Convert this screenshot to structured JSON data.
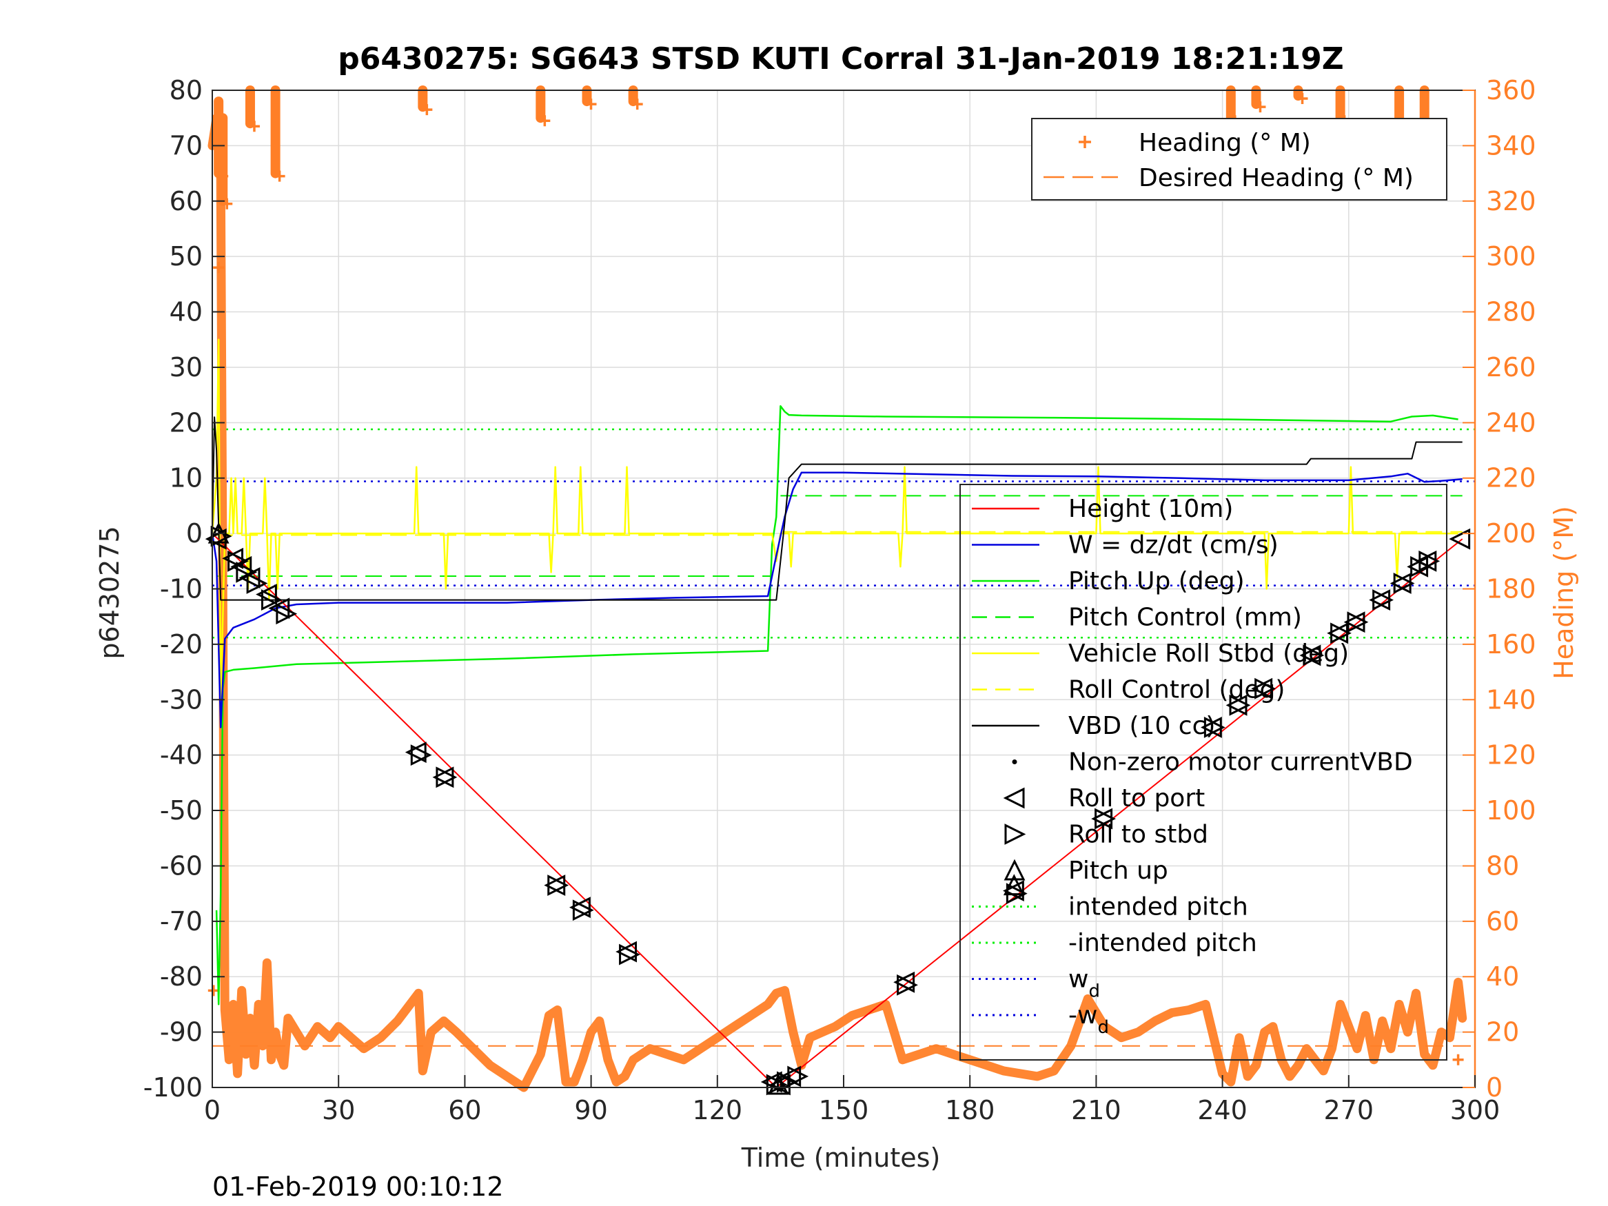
{
  "chart_data": {
    "type": "line",
    "title": "p6430275: SG643 STSD KUTI Corral 31-Jan-2019 18:21:19Z",
    "xlabel": "Time (minutes)",
    "ylabel_left": "p6430275",
    "ylabel_right": "Heading (°M)",
    "footer": "01-Feb-2019 00:10:12",
    "xlim": [
      0,
      300
    ],
    "ylim_left": [
      -100,
      80
    ],
    "ylim_right": [
      0,
      360
    ],
    "grid": true,
    "x_ticks": [
      0,
      30,
      60,
      90,
      120,
      150,
      180,
      210,
      240,
      270,
      300
    ],
    "y_ticks_left": [
      80,
      70,
      60,
      50,
      40,
      30,
      20,
      10,
      0,
      -10,
      -20,
      -30,
      -40,
      -50,
      -60,
      -70,
      -80,
      -90,
      -100
    ],
    "y_ticks_right": [
      360,
      340,
      320,
      300,
      280,
      260,
      240,
      220,
      200,
      180,
      160,
      140,
      120,
      100,
      80,
      60,
      40,
      20,
      0
    ],
    "colors": {
      "height": "#ff0000",
      "w": "#0000dd",
      "pitch": "#00ee00",
      "roll": "#ffff00",
      "vbd": "#000000",
      "heading": "#ff7f27",
      "axis": "#262626"
    },
    "reference_lines": [
      {
        "name": "intended pitch",
        "value": 18.8,
        "color": "#00ee00"
      },
      {
        "name": "-intended pitch",
        "value": -18.8,
        "color": "#00ee00"
      },
      {
        "name": "w_d",
        "value": 9.4,
        "color": "#0000dd"
      },
      {
        "name": "-w_d",
        "value": -9.4,
        "color": "#0000dd"
      }
    ],
    "desired_heading_value": 15,
    "pitch_control_segments": [
      {
        "x": [
          1,
          133
        ],
        "y": [
          -7.7,
          -7.7
        ]
      },
      {
        "x": [
          135,
          297
        ],
        "y": [
          6.8,
          6.8
        ]
      }
    ],
    "roll_control_segments": [
      {
        "x": [
          1,
          133
        ],
        "y": [
          -0.3,
          -0.3
        ]
      },
      {
        "x": [
          135,
          297
        ],
        "y": [
          0.3,
          0.3
        ]
      }
    ],
    "series": [
      {
        "name": "Height (10m)",
        "key": "height",
        "x": [
          0,
          134,
          297
        ],
        "y": [
          0,
          -100,
          -1
        ]
      },
      {
        "name": "W = dz/dt (cm/s)",
        "key": "w",
        "x": [
          0,
          1,
          2,
          3,
          5,
          10,
          15,
          20,
          30,
          50,
          70,
          90,
          110,
          132,
          134,
          136,
          138,
          140,
          150,
          170,
          190,
          210,
          230,
          250,
          270,
          280,
          284,
          288,
          292,
          297
        ],
        "y": [
          0,
          -5,
          -35,
          -19,
          -17,
          -15.5,
          -13.5,
          -12.8,
          -12.5,
          -12.5,
          -12.5,
          -12,
          -11.6,
          -11.3,
          -4,
          3,
          8,
          11,
          11,
          10.7,
          10.4,
          10.3,
          10,
          9.6,
          9.6,
          10.3,
          10.8,
          9.3,
          9.5,
          9.8
        ]
      },
      {
        "name": "Pitch Up (deg)",
        "key": "pitch",
        "x": [
          1,
          1.5,
          2,
          2.5,
          3,
          5,
          10,
          20,
          40,
          70,
          100,
          132,
          133,
          134,
          135,
          136,
          137,
          140,
          160,
          200,
          240,
          280,
          285,
          290,
          296
        ],
        "y": [
          -68,
          -85,
          -65,
          -28,
          -25,
          -24.6,
          -24.3,
          -23.6,
          -23.2,
          -22.6,
          -21.8,
          -21.2,
          -2,
          3,
          23,
          22,
          21.4,
          21.3,
          21.1,
          20.9,
          20.6,
          20.2,
          21.1,
          21.3,
          20.6
        ]
      },
      {
        "name": "Vehicle Roll Stbd (deg)",
        "key": "roll",
        "x": [
          0,
          1,
          1.5,
          2,
          2.5,
          3,
          4,
          4.5,
          5,
          5.5,
          6,
          7,
          7.5,
          8,
          8.5,
          9,
          12,
          12.5,
          13,
          13.5,
          14,
          15,
          15.5,
          16,
          48,
          48.5,
          49,
          55,
          55.5,
          56,
          80,
          80.5,
          81,
          81.5,
          82,
          87,
          87.5,
          88,
          98,
          98.5,
          99,
          130,
          133,
          134,
          135,
          137,
          137.5,
          138,
          163,
          163.5,
          164,
          164.5,
          165,
          210,
          210.5,
          211,
          250,
          250.5,
          251,
          270,
          270.5,
          271,
          281,
          281.5,
          282,
          296
        ],
        "y": [
          0,
          10,
          35,
          -30,
          -15,
          0,
          0,
          10,
          0,
          10,
          0,
          0,
          10,
          0,
          -10,
          0,
          0,
          10,
          0,
          -12,
          0,
          0,
          -10,
          0,
          0,
          12,
          0,
          0,
          -10,
          0,
          0,
          -7,
          0,
          12,
          0,
          0,
          12,
          0,
          0,
          12,
          0,
          0,
          0,
          -5,
          0,
          0,
          -6,
          0,
          0,
          -6,
          0,
          12,
          0,
          0,
          12,
          0,
          0,
          -10,
          0,
          0,
          12,
          0,
          0,
          -8,
          0,
          0
        ]
      },
      {
        "name": "VBD (10 cc)",
        "key": "vbd",
        "x": [
          0,
          0.5,
          1,
          2,
          134,
          136,
          137,
          140,
          260,
          261,
          285,
          286,
          297
        ],
        "y": [
          0,
          21,
          15,
          -12,
          -12,
          2,
          10,
          12.5,
          12.5,
          13.5,
          13.5,
          16.5,
          16.5
        ]
      },
      {
        "name": "Heading (° M)",
        "key": "heading",
        "x": [
          0,
          1,
          2,
          3,
          4,
          5,
          6,
          7,
          8,
          9,
          10,
          11,
          12,
          13,
          14,
          15,
          16,
          17,
          18,
          20,
          22,
          25,
          28,
          30,
          33,
          36,
          40,
          44,
          47,
          49,
          50,
          52,
          55,
          58,
          62,
          66,
          70,
          74,
          78,
          80,
          82,
          84,
          86,
          88,
          90,
          92,
          94,
          96,
          98,
          100,
          104,
          108,
          112,
          116,
          120,
          124,
          128,
          132,
          134,
          136,
          138,
          140,
          142,
          145,
          148,
          152,
          156,
          160,
          164,
          168,
          172,
          176,
          180,
          184,
          188,
          192,
          196,
          200,
          204,
          208,
          212,
          216,
          220,
          224,
          228,
          232,
          236,
          240,
          242,
          244,
          246,
          248,
          250,
          252,
          254,
          256,
          258,
          260,
          262,
          264,
          266,
          268,
          270,
          272,
          274,
          276,
          278,
          280,
          282,
          284,
          286,
          288,
          290,
          292,
          294,
          296,
          297
        ],
        "y": [
          340,
          350,
          330,
          28,
          10,
          30,
          5,
          35,
          12,
          25,
          8,
          30,
          15,
          45,
          10,
          20,
          12,
          8,
          25,
          20,
          15,
          22,
          18,
          22,
          18,
          14,
          18,
          24,
          30,
          34,
          6,
          20,
          24,
          20,
          14,
          8,
          4,
          0,
          12,
          26,
          28,
          2,
          2,
          10,
          20,
          24,
          10,
          2,
          4,
          10,
          14,
          12,
          10,
          14,
          18,
          22,
          26,
          30,
          34,
          35,
          20,
          8,
          18,
          20,
          22,
          26,
          28,
          30,
          10,
          12,
          14,
          12,
          10,
          8,
          6,
          5,
          4,
          6,
          15,
          32,
          22,
          18,
          20,
          24,
          27,
          28,
          30,
          5,
          2,
          18,
          4,
          8,
          20,
          22,
          10,
          4,
          8,
          14,
          10,
          6,
          14,
          30,
          22,
          14,
          26,
          10,
          24,
          14,
          30,
          20,
          34,
          12,
          8,
          20,
          18,
          38,
          25
        ]
      }
    ],
    "heading_clusters": [
      {
        "x": 1.5,
        "min": 330,
        "max": 356
      },
      {
        "x": 2.5,
        "min": 320,
        "max": 350
      },
      {
        "x": 9,
        "min": 348,
        "max": 360
      },
      {
        "x": 15,
        "min": 330,
        "max": 360
      },
      {
        "x": 50,
        "min": 354,
        "max": 360
      },
      {
        "x": 78,
        "min": 350,
        "max": 360
      },
      {
        "x": 89,
        "min": 356,
        "max": 360
      },
      {
        "x": 100,
        "min": 356,
        "max": 360
      },
      {
        "x": 242,
        "min": 350,
        "max": 360
      },
      {
        "x": 248,
        "min": 355,
        "max": 360
      },
      {
        "x": 258,
        "min": 358,
        "max": 360
      },
      {
        "x": 268,
        "min": 350,
        "max": 360
      },
      {
        "x": 282,
        "min": 345,
        "max": 360
      },
      {
        "x": 288,
        "min": 336,
        "max": 360
      }
    ],
    "heading_outliers": [
      {
        "x": 1.5,
        "y": 296
      },
      {
        "x": 0.3,
        "y": 35
      },
      {
        "x": 296,
        "y": 10
      }
    ],
    "markers": {
      "roll_to_port": [
        {
          "x": 1,
          "y": -1
        },
        {
          "x": 5,
          "y": -4.5
        },
        {
          "x": 7,
          "y": -6
        },
        {
          "x": 9,
          "y": -8
        },
        {
          "x": 13,
          "y": -11
        },
        {
          "x": 16,
          "y": -13.5
        },
        {
          "x": 48.5,
          "y": -39.5
        },
        {
          "x": 55,
          "y": -44
        },
        {
          "x": 81.5,
          "y": -63.5
        },
        {
          "x": 87.5,
          "y": -67.5
        },
        {
          "x": 98.5,
          "y": -75.5
        },
        {
          "x": 133,
          "y": -99
        },
        {
          "x": 135,
          "y": -99.5
        },
        {
          "x": 137.5,
          "y": -98
        },
        {
          "x": 164.5,
          "y": -81
        },
        {
          "x": 190.5,
          "y": -64.5
        },
        {
          "x": 211.5,
          "y": -51.5
        },
        {
          "x": 237.5,
          "y": -35
        },
        {
          "x": 243.5,
          "y": -31
        },
        {
          "x": 249.5,
          "y": -28
        },
        {
          "x": 261,
          "y": -22
        },
        {
          "x": 267.5,
          "y": -18
        },
        {
          "x": 271.5,
          "y": -16
        },
        {
          "x": 277.5,
          "y": -12
        },
        {
          "x": 282.5,
          "y": -9
        },
        {
          "x": 286.5,
          "y": -6
        },
        {
          "x": 288.5,
          "y": -5
        },
        {
          "x": 296.5,
          "y": -1
        }
      ],
      "roll_to_stbd": [
        {
          "x": 2,
          "y": -0.5
        },
        {
          "x": 6,
          "y": -5
        },
        {
          "x": 8,
          "y": -7
        },
        {
          "x": 10.5,
          "y": -9
        },
        {
          "x": 14,
          "y": -12
        },
        {
          "x": 17.5,
          "y": -14.5
        },
        {
          "x": 49.5,
          "y": -40
        },
        {
          "x": 55.5,
          "y": -44
        },
        {
          "x": 82,
          "y": -63.5
        },
        {
          "x": 88,
          "y": -68
        },
        {
          "x": 99,
          "y": -76
        },
        {
          "x": 134,
          "y": -99.5
        },
        {
          "x": 136.5,
          "y": -99
        },
        {
          "x": 139,
          "y": -98
        },
        {
          "x": 165,
          "y": -81.5
        },
        {
          "x": 191,
          "y": -65
        },
        {
          "x": 212,
          "y": -51.5
        },
        {
          "x": 238,
          "y": -35
        },
        {
          "x": 244,
          "y": -31
        },
        {
          "x": 250,
          "y": -28
        },
        {
          "x": 261.5,
          "y": -22
        },
        {
          "x": 268,
          "y": -18
        },
        {
          "x": 272,
          "y": -16
        },
        {
          "x": 278,
          "y": -12
        },
        {
          "x": 283,
          "y": -9
        },
        {
          "x": 287,
          "y": -6
        },
        {
          "x": 289,
          "y": -5
        }
      ],
      "pitch_up": [
        {
          "x": 1.5,
          "y": 0
        },
        {
          "x": 134.5,
          "y": -99.5
        },
        {
          "x": 190.5,
          "y": -63.5
        }
      ]
    },
    "legend_top": {
      "position": "top-right",
      "entries": [
        "Heading (° M)",
        "Desired Heading (° M)"
      ]
    },
    "legend_main": {
      "position": "right",
      "entries": [
        {
          "label": "Height (10m)"
        },
        {
          "label": "W = dz/dt (cm/s)"
        },
        {
          "label": "Pitch Up (deg)"
        },
        {
          "label": "Pitch Control (mm)"
        },
        {
          "label": "Vehicle Roll Stbd (deg)"
        },
        {
          "label": "Roll Control (deg)"
        },
        {
          "label": "VBD (10 cc)"
        },
        {
          "label": "Non-zero motor currentVBD"
        },
        {
          "label": "Roll to port"
        },
        {
          "label": "Roll to stbd"
        },
        {
          "label": "Pitch up"
        },
        {
          "label": "intended pitch"
        },
        {
          "label": "-intended pitch"
        },
        {
          "label": "w",
          "subscript": "d"
        },
        {
          "label": "-w",
          "subscript": "d"
        }
      ]
    }
  }
}
